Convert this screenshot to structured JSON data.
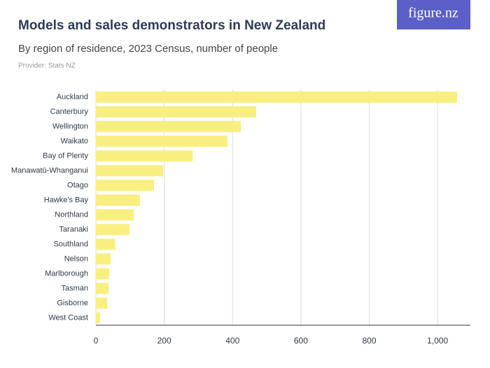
{
  "logo": "figure.nz",
  "chart_data": {
    "type": "bar",
    "orientation": "horizontal",
    "title": "Models and sales demonstrators in New Zealand",
    "subtitle": "By region of residence, 2023 Census, number of people",
    "provider": "Provider: Stats NZ",
    "categories": [
      "Auckland",
      "Canterbury",
      "Wellington",
      "Waikato",
      "Bay of Plenty",
      "Manawatū-Whanganui",
      "Otago",
      "Hawke's Bay",
      "Northland",
      "Taranaki",
      "Southland",
      "Nelson",
      "Marlborough",
      "Tasman",
      "Gisborne",
      "West Coast"
    ],
    "values": [
      1057,
      469,
      424,
      385,
      283,
      197,
      170,
      129,
      111,
      98,
      57,
      43,
      39,
      37,
      33,
      12
    ],
    "color": "#f8ef80",
    "xlim": [
      0,
      1096
    ],
    "xticks": [
      0,
      200,
      400,
      600,
      800,
      {
        "value": 1000,
        "label": "1,000"
      }
    ],
    "grid": true
  }
}
